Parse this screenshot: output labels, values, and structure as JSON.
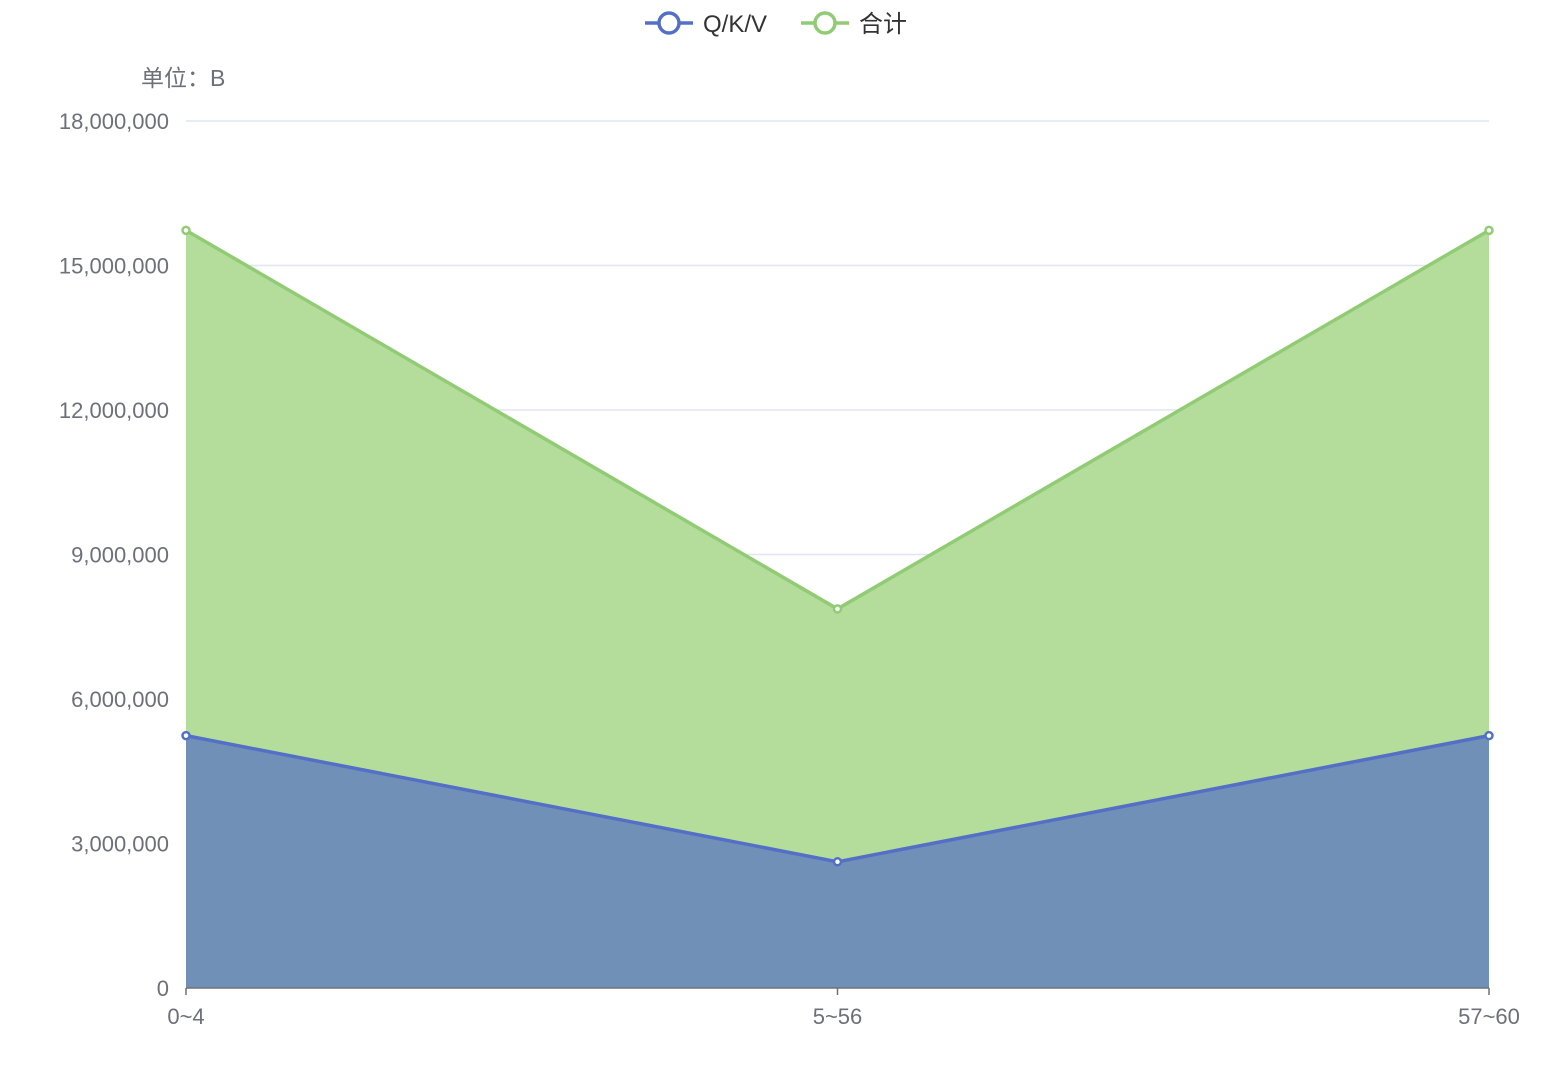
{
  "chart_data": {
    "type": "area",
    "unit_label": "单位：B",
    "categories": [
      "0~4",
      "5~56",
      "57~60"
    ],
    "ylim": [
      0,
      18000000
    ],
    "yticks": [
      0,
      3000000,
      6000000,
      9000000,
      12000000,
      15000000,
      18000000
    ],
    "ytick_labels": [
      "0",
      "3,000,000",
      "6,000,000",
      "9,000,000",
      "12,000,000",
      "15,000,000",
      "18,000,000"
    ],
    "grid": true,
    "legend_position": "top-center",
    "series": [
      {
        "name": "Q/K/V",
        "values": [
          5240000,
          2620000,
          5240000
        ],
        "color": "#5470c6",
        "fill": "#7090b8"
      },
      {
        "name": "合计",
        "values": [
          15730000,
          7870000,
          15730000
        ],
        "color": "#91cc75",
        "fill": "#b4dd9c"
      }
    ]
  }
}
